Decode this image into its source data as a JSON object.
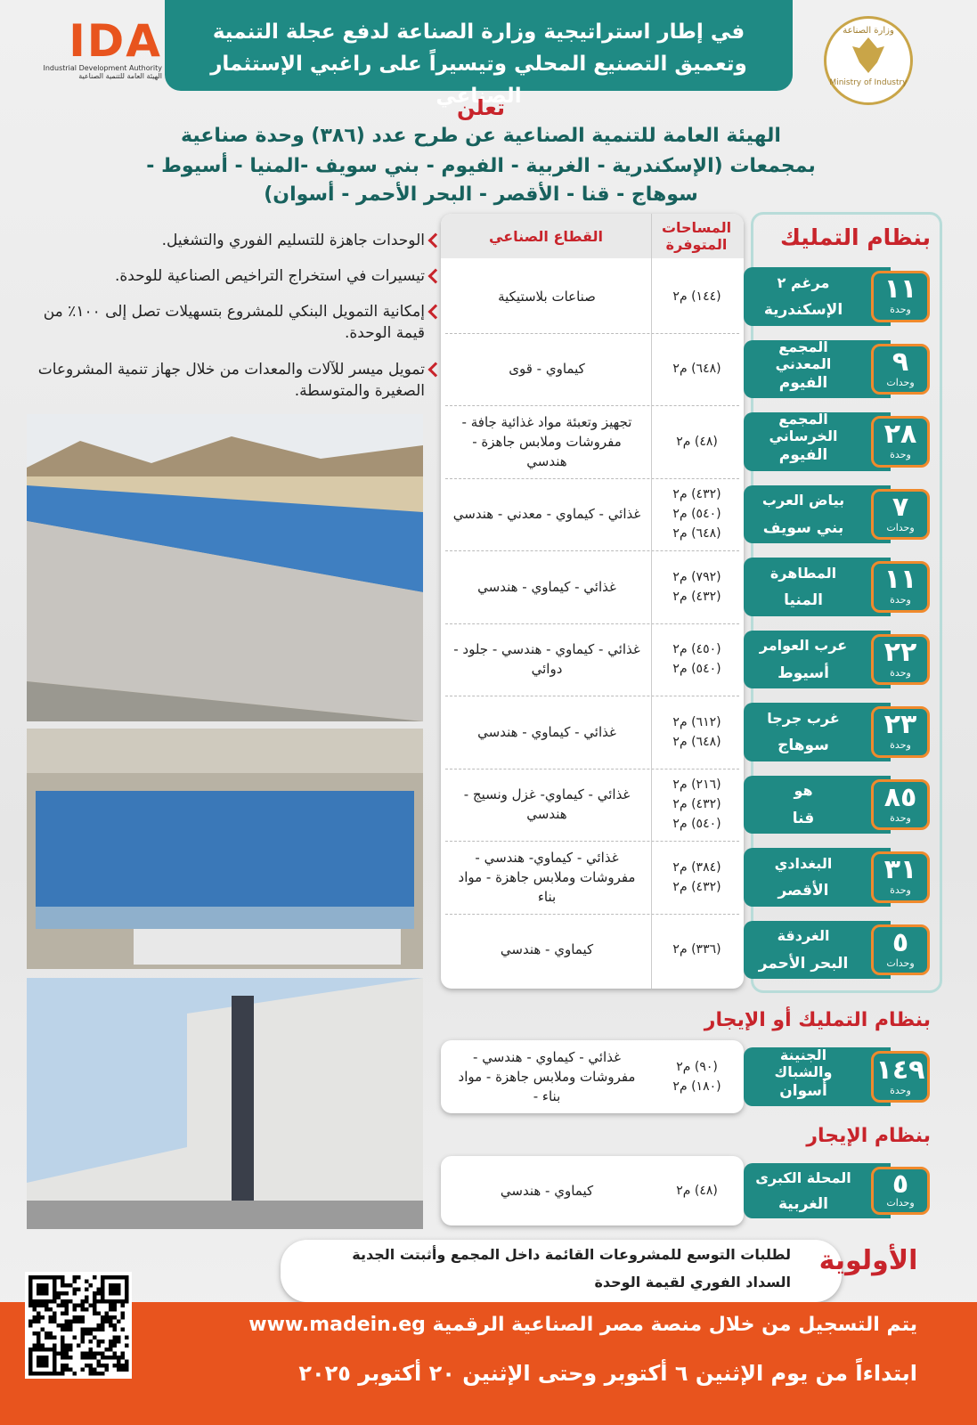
{
  "header": {
    "banner_lines": [
      "في إطار استراتيجية وزارة الصناعة لدفع عجلة التنمية",
      "وتعميق التصنيع المحلي وتيسيراً على راغبي الإستثمار الصناعي"
    ],
    "ida_logo": {
      "mark": "IDA",
      "english": "Industrial Development Authority",
      "arabic": "الهيئة العامة للتنمية الصناعية"
    },
    "ministry_logo": {
      "arabic": "وزارة الصناعة",
      "english": "Ministry of Industry"
    }
  },
  "announcement": {
    "title": "تعلن",
    "lines": [
      "الهيئة العامة للتنمية الصناعية عن طرح عدد (٣٨٦) وحدة صناعية",
      "بمجمعات (الإسكندرية - الغربية - الفيوم - بني سويف -المنيا - أسيوط -",
      "سوهاج - قنا - الأقصر - البحر الأحمر - أسوان)"
    ]
  },
  "table_header": {
    "areas": "المساحات المتوفرة",
    "sector": "القطاع الصناعي"
  },
  "sections": [
    {
      "title": "بنظام التمليك",
      "rows": [
        {
          "count": "١١",
          "unit": "وحدة",
          "complex": "مرغم ٢",
          "governorate": "الإسكندرية",
          "areas": [
            "(١٤٤) م٢"
          ],
          "sector": "صناعات بلاستيكية"
        },
        {
          "count": "٩",
          "unit": "وحدات",
          "complex": "المجمع المعدني",
          "governorate": "الفيوم",
          "areas": [
            "(٦٤٨) م٢"
          ],
          "sector": "كيماوي - قوى"
        },
        {
          "count": "٢٨",
          "unit": "وحدة",
          "complex": "المجمع الخرساني",
          "governorate": "الفيوم",
          "areas": [
            "(٤٨) م٢"
          ],
          "sector": "تجهيز وتعبئة مواد غذائية جافة - مفروشات وملابس جاهزة - هندسي"
        },
        {
          "count": "٧",
          "unit": "وحدات",
          "complex": "بياض العرب",
          "governorate": "بني سويف",
          "areas": [
            "(٤٣٢) م٢",
            "(٥٤٠) م٢",
            "(٦٤٨) م٢"
          ],
          "sector": "غذائي - كيماوي - معدني - هندسي"
        },
        {
          "count": "١١",
          "unit": "وحدة",
          "complex": "المطاهرة",
          "governorate": "المنيا",
          "areas": [
            "(٧٩٢) م٢",
            "(٤٣٢) م٢"
          ],
          "sector": "غذائي - كيماوي - هندسي"
        },
        {
          "count": "٢٢",
          "unit": "وحدة",
          "complex": "عرب العوامر",
          "governorate": "أسيوط",
          "areas": [
            "(٤٥٠) م٢",
            "(٥٤٠) م٢"
          ],
          "sector": "غذائي - كيماوي - هندسي - جلود - دوائي"
        },
        {
          "count": "٢٣",
          "unit": "وحدة",
          "complex": "غرب جرجا",
          "governorate": "سوهاج",
          "areas": [
            "(٦١٢) م٢",
            "(٦٤٨) م٢"
          ],
          "sector": "غذائي - كيماوي - هندسي"
        },
        {
          "count": "٨٥",
          "unit": "وحدة",
          "complex": "هو",
          "governorate": "قنا",
          "areas": [
            "(٢١٦) م٢",
            "(٤٣٢) م٢",
            "(٥٤٠) م٢"
          ],
          "sector": "غذائي - كيماوي- غزل ونسيج - هندسي"
        },
        {
          "count": "٣١",
          "unit": "وحدة",
          "complex": "البغدادي",
          "governorate": "الأقصر",
          "areas": [
            "(٣٨٤) م٢",
            "(٤٣٢) م٢"
          ],
          "sector": "غذائي - كيماوي- هندسي - مفروشات وملابس جاهزة - مواد بناء"
        },
        {
          "count": "٥",
          "unit": "وحدات",
          "complex": "الغردقة",
          "governorate": "البحر الأحمر",
          "areas": [
            "(٣٣٦) م٢"
          ],
          "sector": "كيماوي - هندسي"
        }
      ]
    },
    {
      "title": "بنظام التمليك أو الإيجار",
      "rows": [
        {
          "count": "١٤٩",
          "unit": "وحدة",
          "complex": "الجنينة والشباك",
          "governorate": "أسوان",
          "areas": [
            "(٩٠) م٢",
            "(١٨٠) م٢"
          ],
          "sector": "غذائي - كيماوي - هندسي - مفروشات وملابس جاهزة - مواد بناء -"
        }
      ]
    },
    {
      "title": "بنظام الإيجار",
      "rows": [
        {
          "count": "٥",
          "unit": "وحدات",
          "complex": "المحلة الكبرى",
          "governorate": "الغربية",
          "areas": [
            "(٤٨) م٢"
          ],
          "sector": "كيماوي - هندسي"
        }
      ]
    }
  ],
  "benefits": [
    "الوحدات جاهزة للتسليم الفوري والتشغيل.",
    "تيسيرات في استخراج التراخيص الصناعية للوحدة.",
    "إمكانية التمويل البنكي للمشروع بتسهيلات تصل إلى ١٠٠٪ من قيمة الوحدة.",
    "تمويل ميسر للآلات والمعدات من خلال جهاز تنمية المشروعات الصغيرة والمتوسطة."
  ],
  "priority": {
    "title": "الأولوية",
    "items": [
      "لطلبات التوسع للمشروعات القائمة داخل المجمع وأثبتت الجدية",
      "السداد الفوري لقيمة الوحدة"
    ]
  },
  "footer": {
    "lines": [
      "يتم التسجيل من خلال منصة مصر الصناعية الرقمية www.madein.eg",
      "ابتداءاً من يوم الإثنين ٦ أكتوبر وحتى الإثنين ٢٠ أكتوبر ٢٠٢٥"
    ]
  }
}
